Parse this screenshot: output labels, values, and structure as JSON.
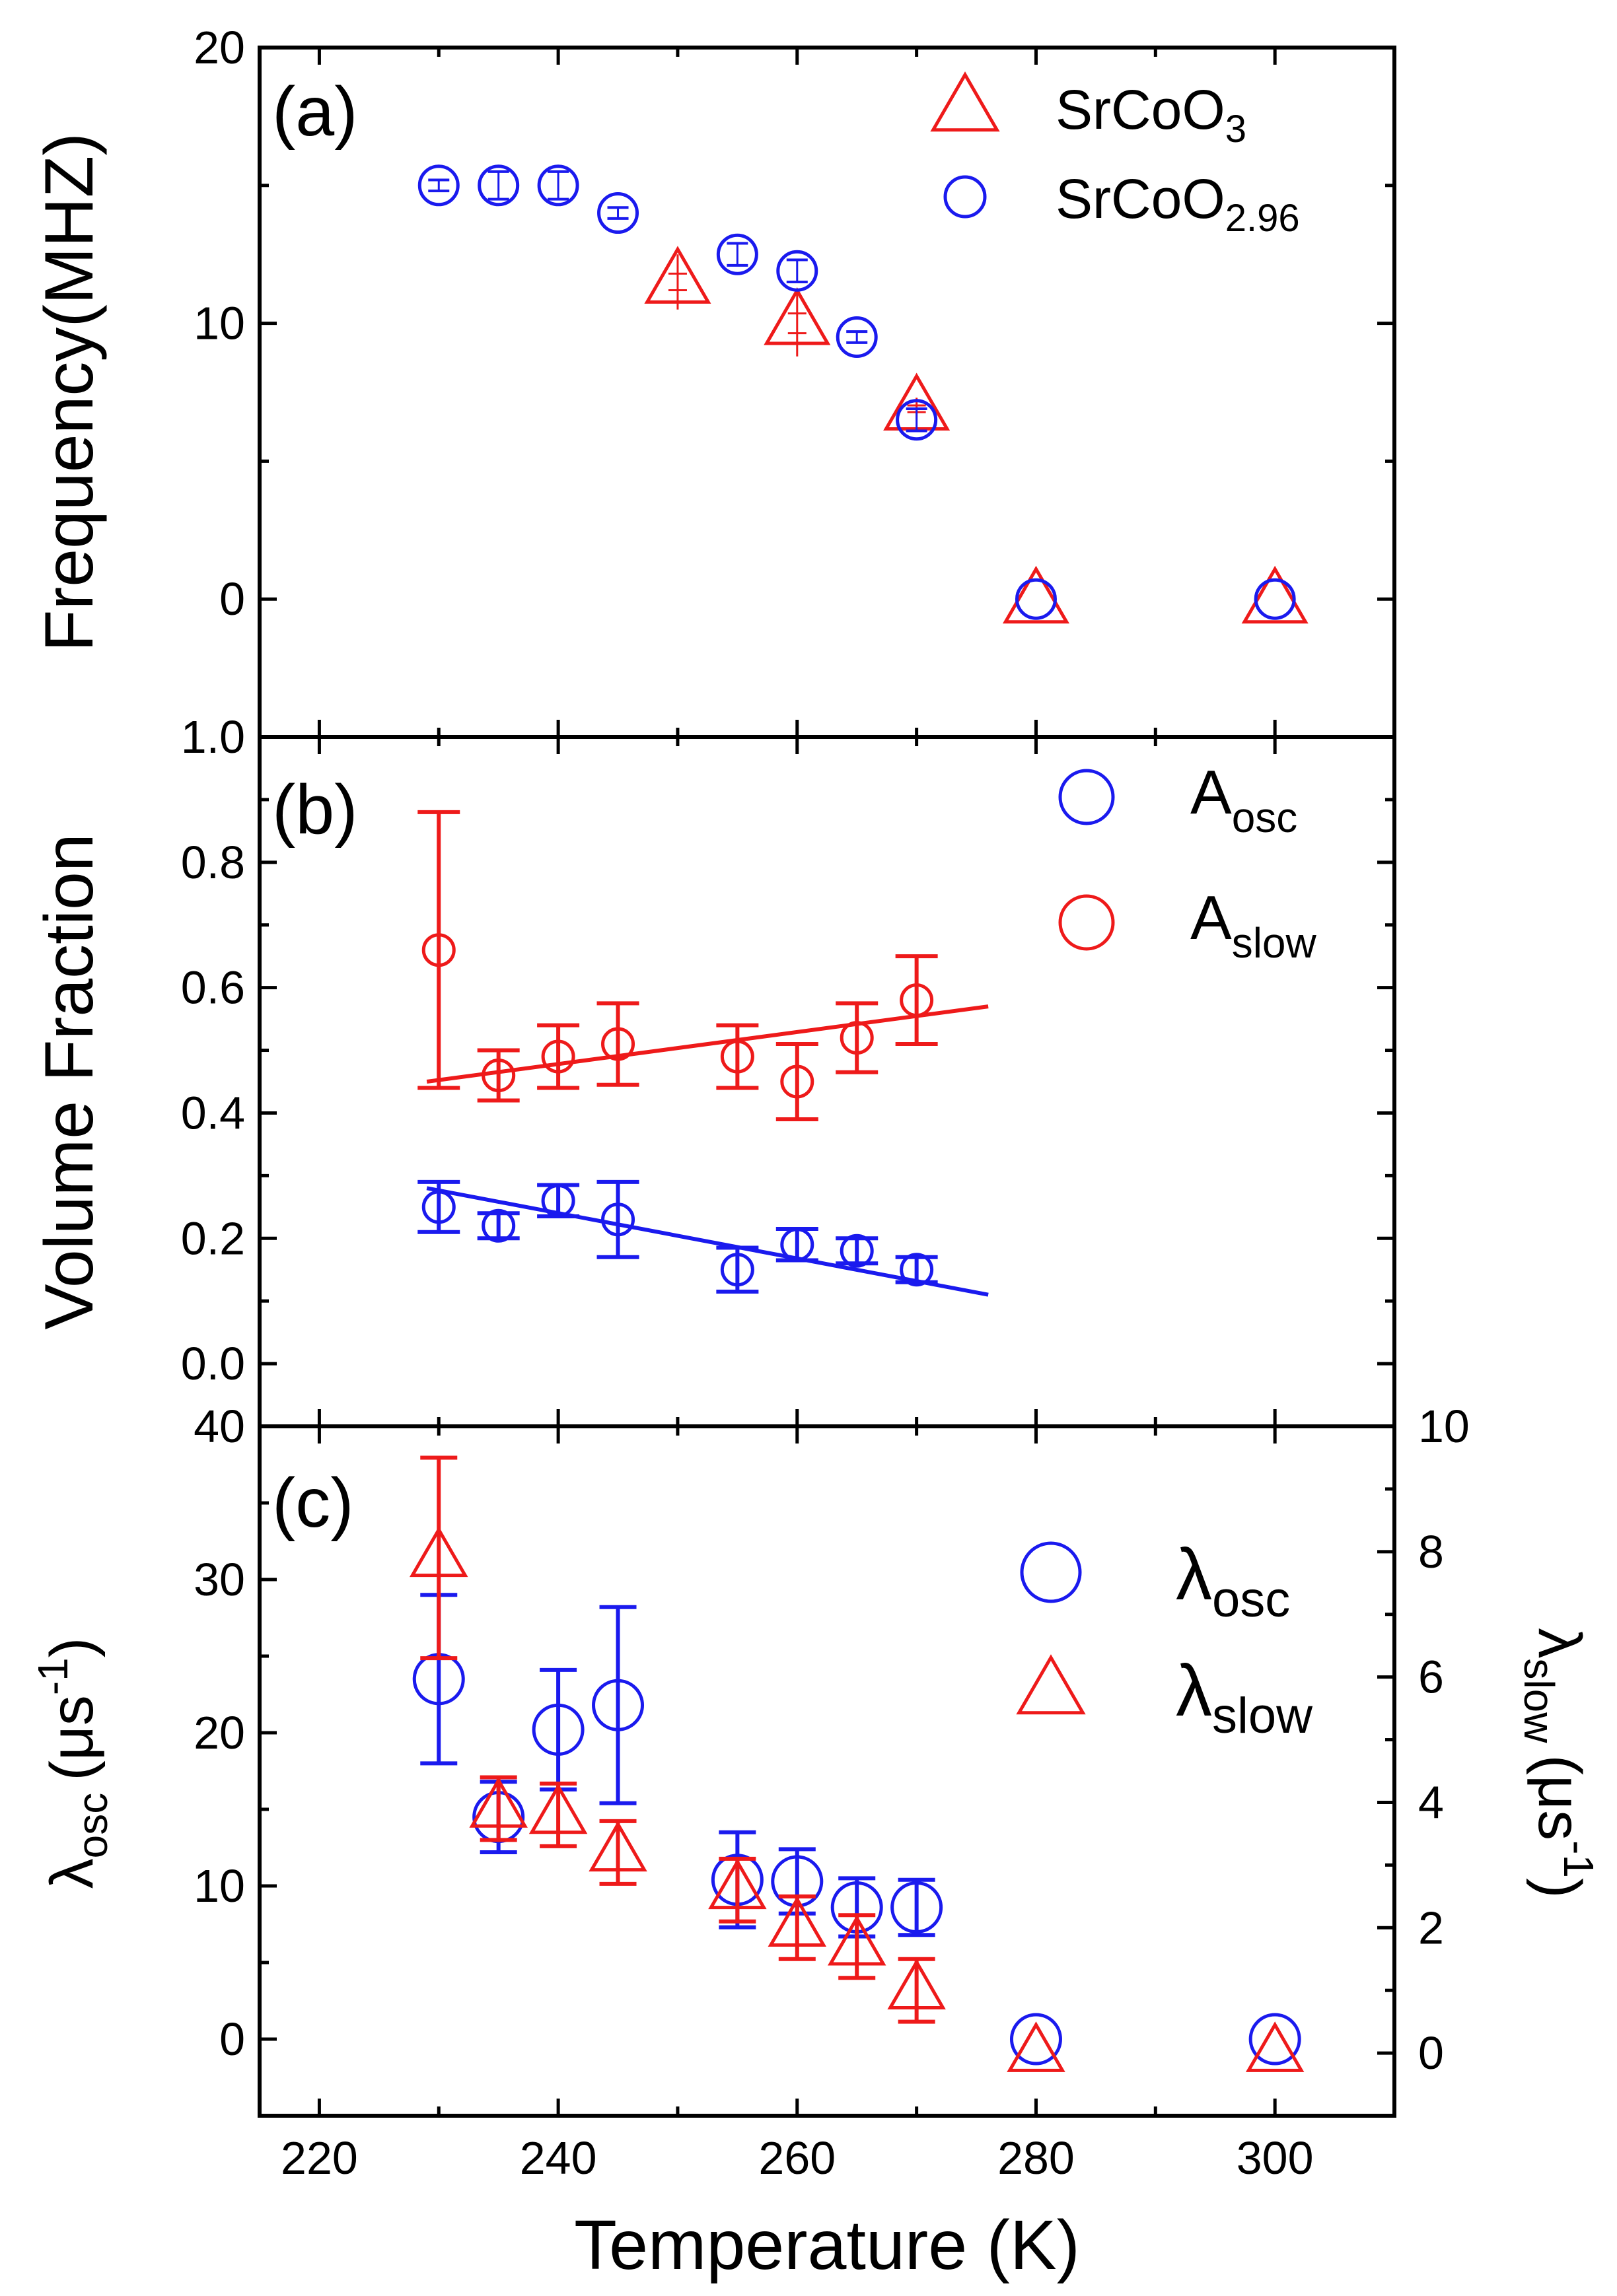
{
  "colors": {
    "blue": "#1a1aee",
    "red": "#ee1a1a",
    "axis": "#000000"
  },
  "chart_data": [
    {
      "panel": "a",
      "type": "scatter",
      "panel_label": "(a)",
      "ylabel": "Frequency(MHZ)",
      "ylim": [
        -5,
        20
      ],
      "yticks": [
        "0",
        "10",
        "20"
      ],
      "legend_position": "top-right",
      "series": [
        {
          "name": "SrCoO3",
          "legend_base": "SrCoO",
          "legend_sub": "3",
          "marker": "triangle",
          "color": "#ee1a1a",
          "x": [
            250,
            260,
            270,
            280,
            300
          ],
          "y": [
            11.5,
            10.0,
            6.9,
            -0.1,
            -0.1
          ],
          "yerr": [
            1.0,
            1.2,
            0.4,
            0,
            0
          ]
        },
        {
          "name": "SrCoO2.96",
          "legend_base": "SrCoO",
          "legend_sub": "2.96",
          "marker": "circle",
          "color": "#1a1aee",
          "x": [
            230,
            235,
            240,
            245,
            255,
            260,
            265,
            270,
            280,
            300
          ],
          "y": [
            15.0,
            15.0,
            15.0,
            14.0,
            12.5,
            11.9,
            9.5,
            6.5,
            0.0,
            0.0
          ],
          "yerr": [
            0.2,
            0.5,
            0.5,
            0.2,
            0.4,
            0.4,
            0.2,
            0.4,
            0,
            0
          ]
        }
      ]
    },
    {
      "panel": "b",
      "type": "scatter",
      "panel_label": "(b)",
      "ylabel": "Volume Fraction",
      "ylim": [
        -0.1,
        1.0
      ],
      "yticks": [
        "0.0",
        "0.2",
        "0.4",
        "0.6",
        "0.8",
        "1.0"
      ],
      "legend_position": "top-right",
      "series": [
        {
          "name": "A_osc",
          "legend_base": "A",
          "legend_sub": "osc",
          "marker": "circle",
          "color": "#1a1aee",
          "x": [
            230,
            235,
            240,
            245,
            255,
            260,
            265,
            270
          ],
          "y": [
            0.25,
            0.22,
            0.26,
            0.23,
            0.15,
            0.19,
            0.18,
            0.15
          ],
          "yerr": [
            0.04,
            0.02,
            0.025,
            0.06,
            0.035,
            0.025,
            0.02,
            0.02
          ],
          "fit": {
            "x": [
              229,
              276
            ],
            "y": [
              0.28,
              0.11
            ]
          }
        },
        {
          "name": "A_slow",
          "legend_base": "A",
          "legend_sub": "slow",
          "marker": "circle",
          "color": "#ee1a1a",
          "x": [
            230,
            235,
            240,
            245,
            255,
            260,
            265,
            270
          ],
          "y": [
            0.66,
            0.46,
            0.49,
            0.51,
            0.49,
            0.45,
            0.52,
            0.58
          ],
          "yerr": [
            0.22,
            0.04,
            0.05,
            0.065,
            0.05,
            0.06,
            0.055,
            0.07
          ],
          "fit": {
            "x": [
              229,
              276
            ],
            "y": [
              0.45,
              0.57
            ]
          }
        }
      ]
    },
    {
      "panel": "c",
      "type": "scatter",
      "panel_label": "(c)",
      "ylabel_base": "λ",
      "ylabel_sub": "osc",
      "ylabel_unit": "(μs",
      "ylabel_sup": "-1",
      "ylabel_close": ")",
      "ylim": [
        -5,
        40
      ],
      "yticks": [
        "0",
        "10",
        "20",
        "30",
        "40"
      ],
      "y2label_base": "λ",
      "y2label_sub": "slow",
      "y2label_unit": "(μs",
      "y2label_sup": "-1",
      "y2label_close": ")",
      "y2lim": [
        -1,
        10
      ],
      "y2ticks": [
        "0",
        "2",
        "4",
        "6",
        "8",
        "10"
      ],
      "xlabel": "Temperature (K)",
      "xlim": [
        215,
        310
      ],
      "xticks": [
        "220",
        "240",
        "260",
        "280",
        "300"
      ],
      "legend_position": "right",
      "series": [
        {
          "name": "λ_osc",
          "legend_base": "λ",
          "legend_sub": "osc",
          "marker": "circle",
          "color": "#1a1aee",
          "axis": "left",
          "x": [
            230,
            235,
            240,
            245,
            255,
            260,
            265,
            270,
            280,
            300
          ],
          "y": [
            23.5,
            14.5,
            20.2,
            21.8,
            10.4,
            10.3,
            8.6,
            8.6,
            0.0,
            0.0
          ],
          "yerr": [
            5.5,
            2.3,
            3.9,
            6.4,
            3.1,
            2.1,
            1.9,
            1.8,
            0,
            0
          ]
        },
        {
          "name": "λ_slow",
          "legend_base": "λ",
          "legend_sub": "slow",
          "marker": "triangle",
          "color": "#ee1a1a",
          "axis": "right",
          "x": [
            230,
            235,
            240,
            245,
            255,
            260,
            265,
            270,
            280,
            300
          ],
          "y": [
            7.9,
            3.9,
            3.8,
            3.2,
            2.6,
            2.0,
            1.7,
            1.0,
            0.0,
            0.0
          ],
          "yerr": [
            1.6,
            0.5,
            0.5,
            0.5,
            0.5,
            0.5,
            0.5,
            0.5,
            0,
            0
          ]
        }
      ]
    }
  ]
}
